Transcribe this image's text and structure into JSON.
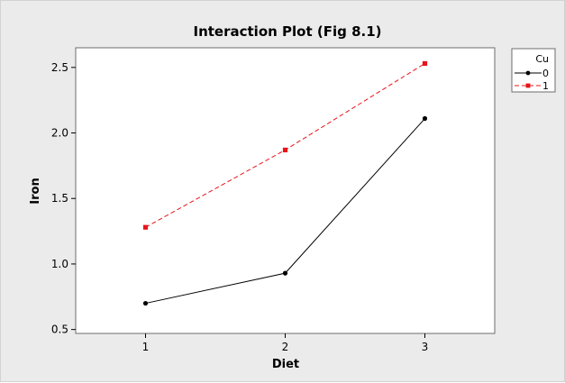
{
  "chart_data": {
    "type": "line",
    "title": "Interaction Plot (Fig 8.1)",
    "xlabel": "Diet",
    "ylabel": "Iron",
    "categories": [
      "1",
      "2",
      "3"
    ],
    "x": [
      1,
      2,
      3
    ],
    "xlim": [
      0.5,
      3.5
    ],
    "ylim": [
      0.47,
      2.65
    ],
    "yticks": [
      0.5,
      1.0,
      1.5,
      2.0,
      2.5
    ],
    "ytick_labels": [
      "0.5",
      "1.0",
      "1.5",
      "2.0",
      "2.5"
    ],
    "grid": false,
    "legend": {
      "title": "Cu",
      "placement": "right"
    },
    "series": [
      {
        "name": "0",
        "values": [
          0.7,
          0.93,
          2.11
        ],
        "color": "#000000",
        "dash": "solid",
        "marker": "circle"
      },
      {
        "name": "1",
        "values": [
          1.28,
          1.87,
          2.53
        ],
        "color": "#e8141a",
        "dash": "dashed",
        "marker": "square"
      }
    ]
  }
}
